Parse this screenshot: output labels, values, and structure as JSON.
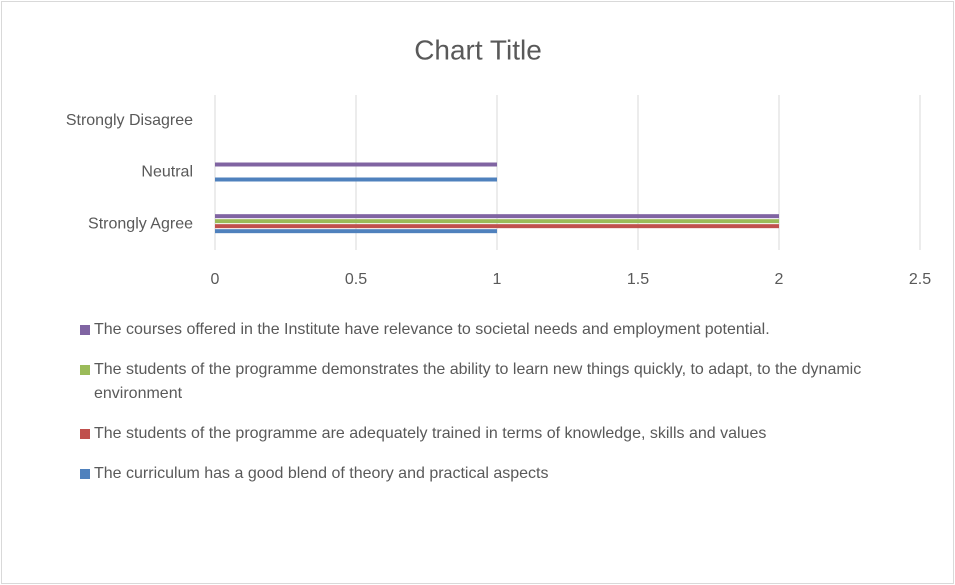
{
  "chart_data": {
    "type": "bar",
    "orientation": "horizontal",
    "title": "Chart Title",
    "categories": [
      "Strongly Agree",
      "Neutral",
      "Strongly Disagree"
    ],
    "series": [
      {
        "name": "The curriculum has a good blend of theory and practical aspects",
        "color": "#4f81bd",
        "values": [
          1,
          1,
          0
        ]
      },
      {
        "name": "The students of the programme are adequately trained in terms of knowledge, skills and values",
        "color": "#c0504d",
        "values": [
          2,
          0,
          0
        ]
      },
      {
        "name": "The students of the programme demonstrates the ability to learn new things quickly, to adapt, to the dynamic environment",
        "color": "#9bbb59",
        "values": [
          2,
          0,
          0
        ]
      },
      {
        "name": "The courses offered in the Institute have relevance to societal needs and employment potential.",
        "color": "#8064a2",
        "values": [
          2,
          1,
          0
        ]
      }
    ],
    "xlim": [
      0,
      2.5
    ],
    "xticks": [
      0,
      0.5,
      1,
      1.5,
      2,
      2.5
    ],
    "grid": true,
    "legend": "bottom"
  }
}
